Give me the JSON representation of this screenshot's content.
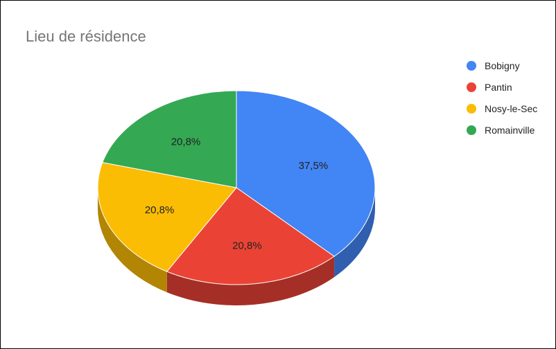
{
  "chart_data": {
    "type": "pie",
    "title": "Lieu de résidence",
    "labels": [
      "Bobigny",
      "Pantin",
      "Nosy-le-Sec",
      "Romainville"
    ],
    "values": [
      37.5,
      20.8,
      20.8,
      20.8
    ],
    "data_labels": [
      "37,5%",
      "20,8%",
      "20,8%",
      "20,8%"
    ],
    "colors": [
      "#4285f4",
      "#ea4335",
      "#fbbc04",
      "#34a853"
    ],
    "side_colors": [
      "#2f5fae",
      "#a52f26",
      "#b28504",
      "#25773b"
    ],
    "legend_position": "right",
    "style": "3d"
  }
}
